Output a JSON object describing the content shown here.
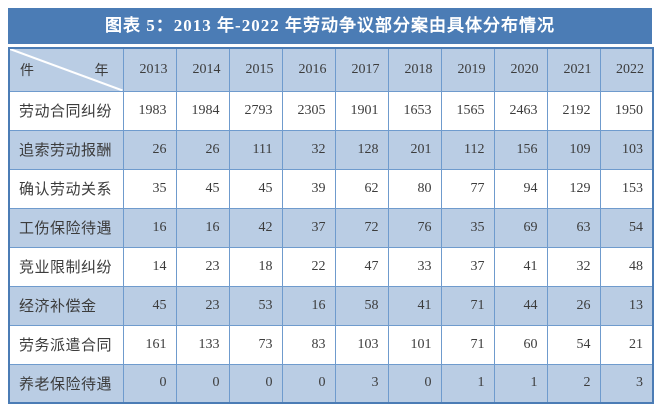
{
  "title": "图表 5：2013 年-2022 年劳动争议部分案由具体分布情况",
  "table": {
    "corner": {
      "row_dimension": "件",
      "col_dimension": "年"
    }
  },
  "chart_data": {
    "type": "table",
    "title": "图表 5：2013 年-2022 年劳动争议部分案由具体分布情况",
    "columns": [
      "2013",
      "2014",
      "2015",
      "2016",
      "2017",
      "2018",
      "2019",
      "2020",
      "2021",
      "2022"
    ],
    "rows": [
      {
        "label": "劳动合同纠纷",
        "values": [
          1983,
          1984,
          2793,
          2305,
          1901,
          1653,
          1565,
          2463,
          2192,
          1950
        ]
      },
      {
        "label": "追索劳动报酬",
        "values": [
          26,
          26,
          111,
          32,
          128,
          201,
          112,
          156,
          109,
          103
        ]
      },
      {
        "label": "确认劳动关系",
        "values": [
          35,
          45,
          45,
          39,
          62,
          80,
          77,
          94,
          129,
          153
        ]
      },
      {
        "label": "工伤保险待遇",
        "values": [
          16,
          16,
          42,
          37,
          72,
          76,
          35,
          69,
          63,
          54
        ]
      },
      {
        "label": "竞业限制纠纷",
        "values": [
          14,
          23,
          18,
          22,
          47,
          33,
          37,
          41,
          32,
          48
        ]
      },
      {
        "label": "经济补偿金",
        "values": [
          45,
          23,
          53,
          16,
          58,
          41,
          71,
          44,
          26,
          13
        ]
      },
      {
        "label": "劳务派遣合同",
        "values": [
          161,
          133,
          73,
          83,
          103,
          101,
          71,
          60,
          54,
          21
        ]
      },
      {
        "label": "养老保险待遇",
        "values": [
          0,
          0,
          0,
          0,
          3,
          0,
          1,
          1,
          2,
          3
        ]
      }
    ]
  },
  "colors": {
    "title_bar": "#4b7cb5",
    "title_text": "#ffffff",
    "light_cell": "#bacde4",
    "cell_border": "#6f9bcd",
    "text": "#3c3c3c",
    "diagonal_line": "#ffffff"
  }
}
